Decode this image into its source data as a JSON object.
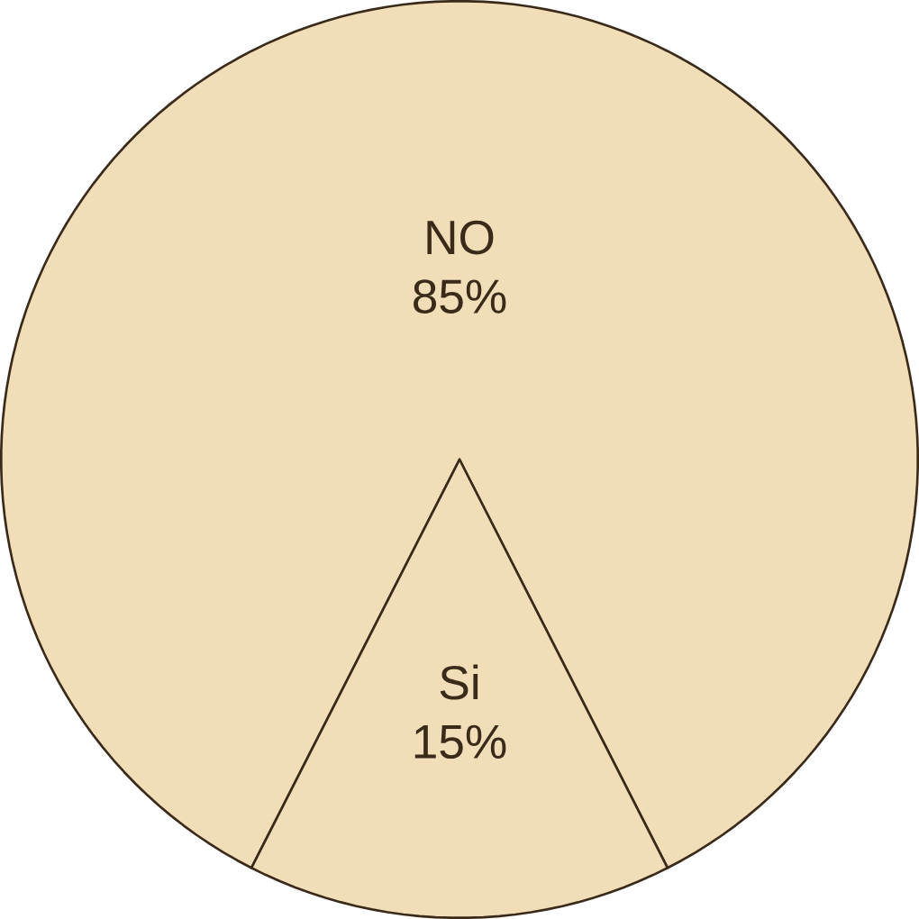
{
  "chart_data": {
    "type": "pie",
    "categories": [
      "NO",
      "Si"
    ],
    "values": [
      85,
      15
    ],
    "value_labels": [
      "85%",
      "15%"
    ],
    "colors": [
      "#f1deb8",
      "#f1deb8"
    ]
  }
}
